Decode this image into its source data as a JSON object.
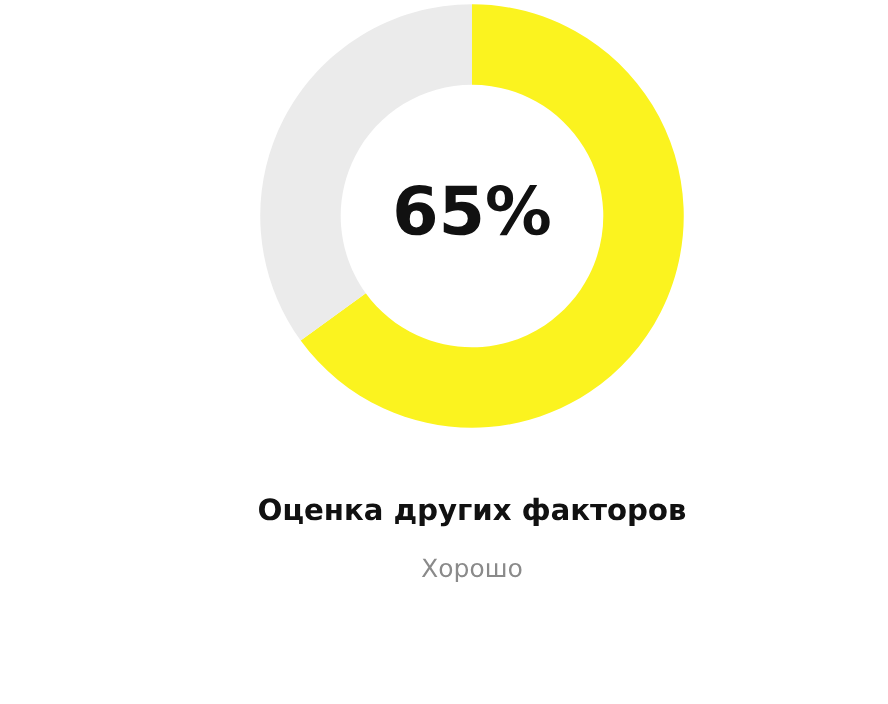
{
  "chart_data": {
    "type": "donut",
    "title": "Оценка других факторов",
    "subtitle": "Хорошо",
    "categories": [
      null,
      null
    ],
    "values": [
      65,
      35
    ],
    "colors": [
      "#fbf31f",
      "#ebebeb"
    ],
    "annotations": [
      "65%"
    ],
    "legend": false
  }
}
